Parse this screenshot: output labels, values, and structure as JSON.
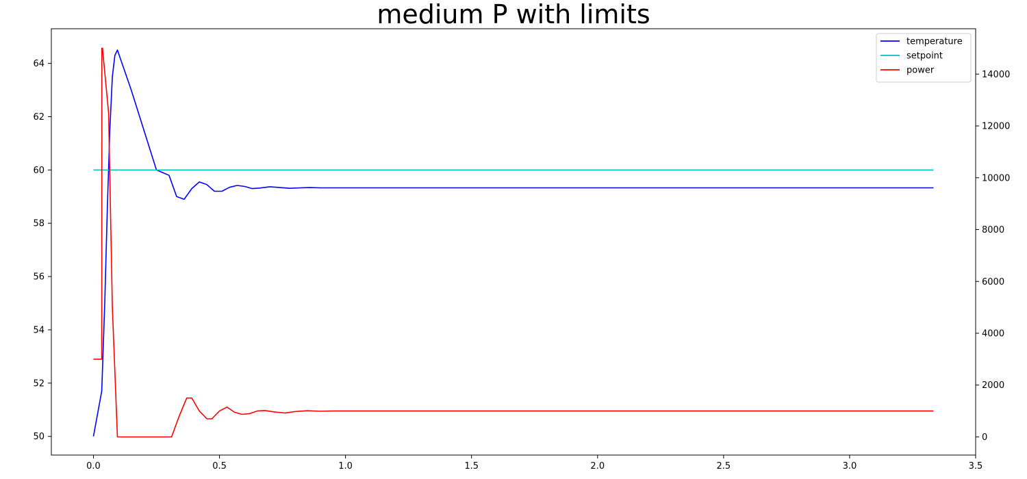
{
  "chart_data": {
    "type": "line",
    "title": "medium P with limits",
    "xlabel": "",
    "ylabel_left": "",
    "ylabel_right": "",
    "xlim": [
      -0.167,
      3.5
    ],
    "ylim_left": [
      49.3,
      65.3
    ],
    "ylim_right": [
      -700,
      15750
    ],
    "x_ticks": [
      0.0,
      0.5,
      1.0,
      1.5,
      2.0,
      2.5,
      3.0,
      3.5
    ],
    "x_tick_labels": [
      "0.0",
      "0.5",
      "1.0",
      "1.5",
      "2.0",
      "2.5",
      "3.0",
      "3.5"
    ],
    "y_left_ticks": [
      50,
      52,
      54,
      56,
      58,
      60,
      62,
      64
    ],
    "y_left_tick_labels": [
      "50",
      "52",
      "54",
      "56",
      "58",
      "60",
      "62",
      "64"
    ],
    "y_right_ticks": [
      0,
      2000,
      4000,
      6000,
      8000,
      10000,
      12000,
      14000
    ],
    "y_right_tick_labels": [
      "0",
      "2000",
      "4000",
      "6000",
      "8000",
      "10000",
      "12000",
      "14000"
    ],
    "grid": false,
    "legend_position": "top-right",
    "series": [
      {
        "name": "temperature",
        "axis": "left",
        "color": "#0000ff",
        "x": [
          0.0,
          0.033,
          0.045,
          0.055,
          0.065,
          0.075,
          0.085,
          0.095,
          0.15,
          0.2,
          0.25,
          0.3,
          0.33,
          0.36,
          0.39,
          0.42,
          0.45,
          0.48,
          0.51,
          0.54,
          0.57,
          0.6,
          0.63,
          0.66,
          0.7,
          0.74,
          0.78,
          0.82,
          0.86,
          0.9,
          1.0,
          1.1,
          3.333
        ],
        "y": [
          50.0,
          51.7,
          55.0,
          58.5,
          61.5,
          63.5,
          64.3,
          64.5,
          63.0,
          61.5,
          60.0,
          59.8,
          59.0,
          58.9,
          59.3,
          59.55,
          59.45,
          59.2,
          59.2,
          59.35,
          59.42,
          59.38,
          59.3,
          59.32,
          59.37,
          59.34,
          59.31,
          59.33,
          59.34,
          59.33,
          59.33,
          59.33,
          59.33
        ]
      },
      {
        "name": "setpoint",
        "axis": "left",
        "color": "#00bfbf",
        "x": [
          0.0,
          3.333
        ],
        "y": [
          60.0,
          60.0
        ]
      },
      {
        "name": "power",
        "axis": "right",
        "color": "#ff0000",
        "x": [
          0.0,
          0.033,
          0.0335,
          0.036,
          0.06,
          0.075,
          0.095,
          0.2,
          0.31,
          0.34,
          0.37,
          0.39,
          0.42,
          0.45,
          0.47,
          0.5,
          0.53,
          0.56,
          0.59,
          0.62,
          0.65,
          0.68,
          0.72,
          0.76,
          0.8,
          0.85,
          0.9,
          0.95,
          1.0,
          1.1,
          3.333
        ],
        "y": [
          3000,
          3000,
          15000,
          15000,
          12500,
          5000,
          0,
          0,
          0,
          800,
          1500,
          1500,
          1000,
          700,
          700,
          1000,
          1150,
          950,
          870,
          900,
          1000,
          1020,
          960,
          920,
          980,
          1010,
          990,
          1000,
          1000,
          1000,
          1000
        ]
      }
    ]
  }
}
